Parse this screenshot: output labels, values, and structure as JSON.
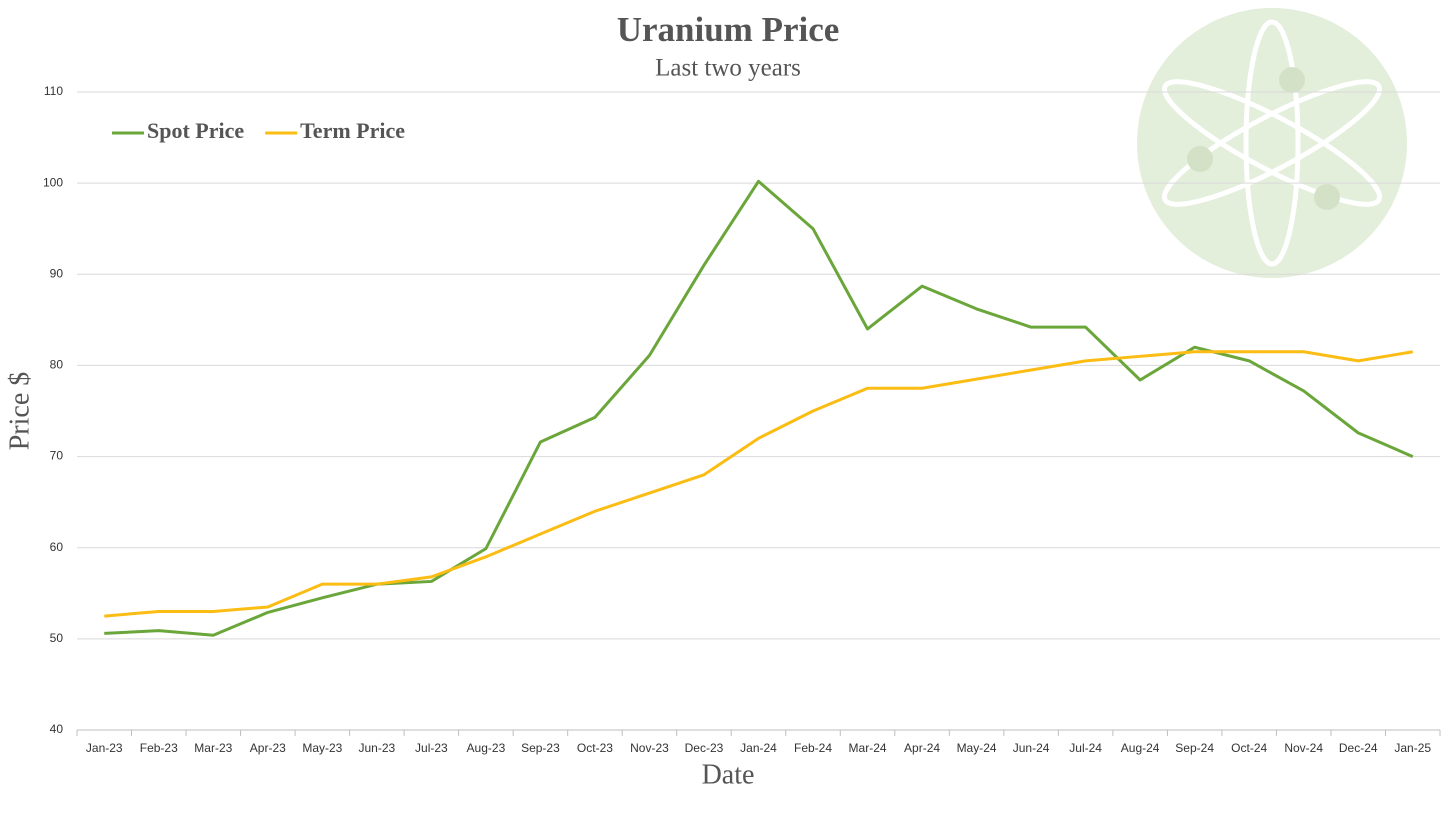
{
  "chart_data": {
    "type": "line",
    "title": "Uranium Price",
    "subtitle": "Last two years",
    "x_label": "Date",
    "y_label": "Price $",
    "categories": [
      "Jan-23",
      "Feb-23",
      "Mar-23",
      "Apr-23",
      "May-23",
      "Jun-23",
      "Jul-23",
      "Aug-23",
      "Sep-23",
      "Oct-23",
      "Nov-23",
      "Dec-23",
      "Jan-24",
      "Feb-24",
      "Mar-24",
      "Apr-24",
      "May-24",
      "Jun-24",
      "Jul-24",
      "Aug-24",
      "Sep-24",
      "Oct-24",
      "Nov-24",
      "Dec-24",
      "Jan-25"
    ],
    "series": [
      {
        "name": "Spot Price",
        "color": "#6aa63a",
        "values": [
          50.6,
          50.9,
          50.4,
          52.9,
          54.5,
          56.0,
          56.3,
          59.9,
          71.6,
          74.3,
          81.1,
          91.0,
          100.2,
          95.0,
          84.0,
          88.7,
          86.2,
          84.2,
          84.2,
          78.4,
          82.0,
          80.5,
          77.2,
          72.6,
          70.0
        ]
      },
      {
        "name": "Term Price",
        "color": "#fbbc13",
        "values": [
          52.5,
          53,
          53,
          53.5,
          56,
          56,
          56.8,
          59,
          61.5,
          64,
          66,
          68,
          72,
          75,
          77.5,
          77.5,
          78.5,
          79.5,
          80.5,
          81,
          81.5,
          81.5,
          81.5,
          80.5,
          81.5
        ]
      }
    ],
    "ylim": [
      40,
      110
    ],
    "yticks": [
      40,
      50,
      60,
      70,
      80,
      90,
      100,
      110
    ],
    "grid": true,
    "legend": "top-left"
  }
}
